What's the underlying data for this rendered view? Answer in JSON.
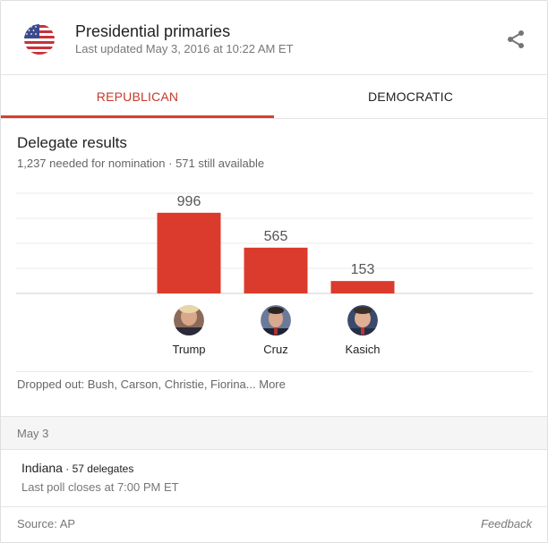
{
  "header": {
    "title": "Presidential primaries",
    "updated": "Last updated May 3, 2016 at 10:22 AM ET",
    "flag_icon": "us-flag-icon",
    "share_icon": "share-icon"
  },
  "tabs": [
    {
      "label": "REPUBLICAN",
      "active": true
    },
    {
      "label": "DEMOCRATIC",
      "active": false
    }
  ],
  "section": {
    "title": "Delegate results",
    "subtitle": "1,237 needed for nomination · 571 still available"
  },
  "chart_data": {
    "type": "bar",
    "title": "Delegate results",
    "categories": [
      "Trump",
      "Cruz",
      "Kasich"
    ],
    "values": [
      996,
      565,
      153
    ],
    "ylim": [
      0,
      1237
    ],
    "grid": true,
    "colors": {
      "bar": "#db3b2c",
      "grid": "#ebebeb",
      "axis": "#cfcfcf"
    }
  },
  "dropped_out": {
    "text": "Dropped out: Bush, Carson, Christie, Fiorina...",
    "more": "More"
  },
  "schedule": {
    "date": "May 3",
    "state": "Indiana",
    "delegates": " · 57 delegates",
    "poll": "Last poll closes at 7:00 PM ET"
  },
  "footer": {
    "source": "Source: AP",
    "feedback": "Feedback"
  },
  "colors": {
    "accent": "#c53929",
    "text": "#222222",
    "muted": "#777777"
  }
}
